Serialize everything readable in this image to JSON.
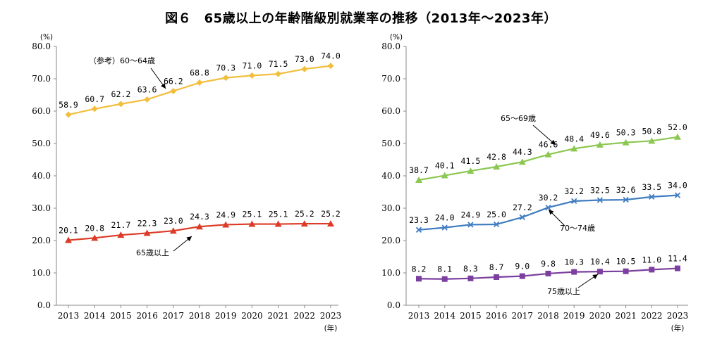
{
  "title": "図６　65歳以上の年齢階級別就業率の推移（2013年～2023年）",
  "chart_data": [
    {
      "type": "line",
      "categories": [
        "2013",
        "2014",
        "2015",
        "2016",
        "2017",
        "2018",
        "2019",
        "2020",
        "2021",
        "2022",
        "2023"
      ],
      "ylim": [
        0,
        80
      ],
      "yticks": [
        "0.0",
        "10.0",
        "20.0",
        "30.0",
        "40.0",
        "50.0",
        "60.0",
        "70.0",
        "80.0"
      ],
      "ylabel": "(%)",
      "xlabel": "(年)",
      "series": [
        {
          "name": "（参考）60～64歳",
          "color": "#F2BE3C",
          "marker": "diamond",
          "values": [
            58.9,
            60.7,
            62.2,
            63.6,
            66.2,
            68.8,
            70.3,
            71.0,
            71.5,
            73.0,
            74.0
          ],
          "labels": [
            "58.9",
            "60.7",
            "62.2",
            "63.6",
            "66.2",
            "68.8",
            "70.3",
            "71.0",
            "71.5",
            "73.0",
            "74.0"
          ]
        },
        {
          "name": "65歳以上",
          "color": "#DC3B26",
          "marker": "triangle",
          "values": [
            20.1,
            20.8,
            21.7,
            22.3,
            23.0,
            24.3,
            24.9,
            25.1,
            25.1,
            25.2,
            25.2
          ],
          "labels": [
            "20.1",
            "20.8",
            "21.7",
            "22.3",
            "23.0",
            "24.3",
            "24.9",
            "25.1",
            "25.1",
            "25.2",
            "25.2"
          ]
        }
      ]
    },
    {
      "type": "line",
      "categories": [
        "2013",
        "2014",
        "2015",
        "2016",
        "2017",
        "2018",
        "2019",
        "2020",
        "2021",
        "2022",
        "2023"
      ],
      "ylim": [
        0,
        80
      ],
      "yticks": [
        "0.0",
        "10.0",
        "20.0",
        "30.0",
        "40.0",
        "50.0",
        "60.0",
        "70.0",
        "80.0"
      ],
      "ylabel": "(%)",
      "xlabel": "(年)",
      "series": [
        {
          "name": "65～69歳",
          "color": "#8CC751",
          "marker": "triangle",
          "values": [
            38.7,
            40.1,
            41.5,
            42.8,
            44.3,
            46.6,
            48.4,
            49.6,
            50.3,
            50.8,
            52.0
          ],
          "labels": [
            "38.7",
            "40.1",
            "41.5",
            "42.8",
            "44.3",
            "46.6",
            "48.4",
            "49.6",
            "50.3",
            "50.8",
            "52.0"
          ]
        },
        {
          "name": "70～74歳",
          "color": "#3F7CC0",
          "marker": "cross",
          "values": [
            23.3,
            24.0,
            24.9,
            25.0,
            27.2,
            30.2,
            32.2,
            32.5,
            32.6,
            33.5,
            34.0
          ],
          "labels": [
            "23.3",
            "24.0",
            "24.9",
            "25.0",
            "27.2",
            "30.2",
            "32.2",
            "32.5",
            "32.6",
            "33.5",
            "34.0"
          ]
        },
        {
          "name": "75歳以上",
          "color": "#7B3FA0",
          "marker": "square",
          "values": [
            8.2,
            8.1,
            8.3,
            8.7,
            9.0,
            9.8,
            10.3,
            10.4,
            10.5,
            11.0,
            11.4
          ],
          "labels": [
            "8.2",
            "8.1",
            "8.3",
            "8.7",
            "9.0",
            "9.8",
            "10.3",
            "10.4",
            "10.5",
            "11.0",
            "11.4"
          ]
        }
      ]
    }
  ]
}
